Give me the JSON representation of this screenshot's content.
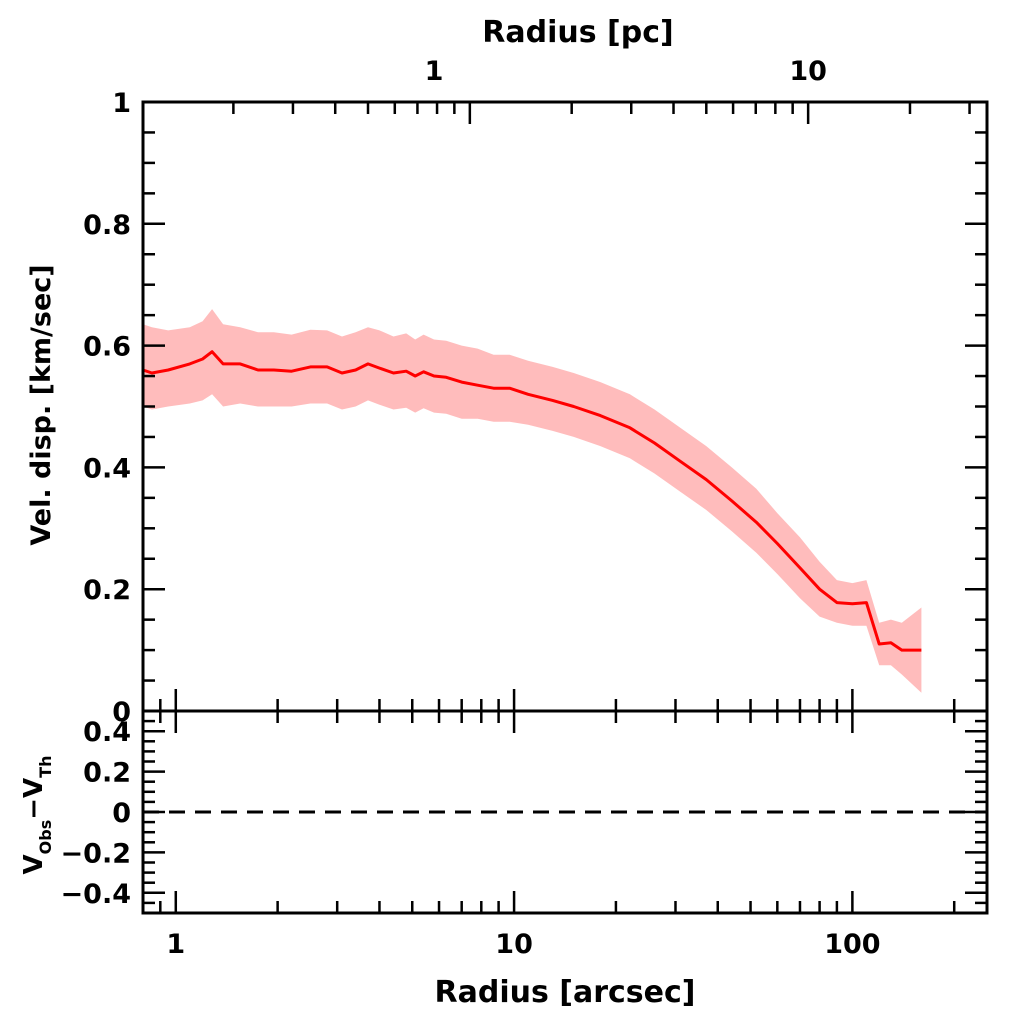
{
  "chart_data": [
    {
      "type": "area",
      "panel": "top",
      "xlabel_top": "Radius [pc]",
      "ylabel": "Vel. disp. [km/sec]",
      "x_scale": "log",
      "xlim": [
        0.8,
        250
      ],
      "ylim": [
        0,
        1
      ],
      "yticks": [
        "0",
        "0.2",
        "0.4",
        "0.6",
        "0.8",
        "1"
      ],
      "pc_ticks": [
        {
          "label": "1",
          "x_arcsec": 5.8
        },
        {
          "label": "10",
          "x_arcsec": 74
        }
      ],
      "colors": {
        "line": "#ff0000",
        "band": "#ffbcbc"
      },
      "series": [
        {
          "x": [
            0.8,
            0.85,
            0.95,
            1.1,
            1.2,
            1.28,
            1.38,
            1.55,
            1.75,
            1.95,
            2.2,
            2.5,
            2.8,
            3.1,
            3.4,
            3.7,
            4.0,
            4.4,
            4.8,
            5.1,
            5.4,
            5.8,
            6.3,
            7.0,
            7.8,
            8.7,
            9.7,
            11,
            13,
            15,
            18,
            22,
            26,
            31,
            37,
            44,
            52,
            60,
            70,
            80,
            90,
            100,
            110,
            120,
            130,
            140,
            160
          ],
          "y": [
            0.56,
            0.555,
            0.56,
            0.57,
            0.578,
            0.59,
            0.57,
            0.57,
            0.56,
            0.56,
            0.558,
            0.565,
            0.565,
            0.555,
            0.56,
            0.57,
            0.563,
            0.555,
            0.558,
            0.55,
            0.557,
            0.55,
            0.548,
            0.54,
            0.535,
            0.53,
            0.53,
            0.52,
            0.51,
            0.5,
            0.485,
            0.465,
            0.44,
            0.41,
            0.38,
            0.345,
            0.31,
            0.275,
            0.235,
            0.2,
            0.178,
            0.176,
            0.178,
            0.11,
            0.112,
            0.1,
            0.1
          ],
          "y_lower": [
            0.5,
            0.495,
            0.5,
            0.505,
            0.51,
            0.52,
            0.5,
            0.505,
            0.5,
            0.5,
            0.5,
            0.505,
            0.505,
            0.495,
            0.5,
            0.51,
            0.503,
            0.495,
            0.498,
            0.49,
            0.497,
            0.49,
            0.488,
            0.48,
            0.48,
            0.475,
            0.475,
            0.47,
            0.46,
            0.45,
            0.435,
            0.415,
            0.39,
            0.36,
            0.33,
            0.295,
            0.26,
            0.225,
            0.185,
            0.155,
            0.145,
            0.14,
            0.14,
            0.075,
            0.075,
            0.06,
            0.03
          ],
          "y_upper": [
            0.635,
            0.63,
            0.625,
            0.63,
            0.64,
            0.66,
            0.635,
            0.63,
            0.622,
            0.622,
            0.618,
            0.626,
            0.625,
            0.615,
            0.622,
            0.63,
            0.625,
            0.615,
            0.62,
            0.61,
            0.618,
            0.61,
            0.608,
            0.6,
            0.595,
            0.585,
            0.585,
            0.575,
            0.565,
            0.555,
            0.54,
            0.52,
            0.495,
            0.465,
            0.435,
            0.4,
            0.365,
            0.325,
            0.285,
            0.245,
            0.215,
            0.21,
            0.215,
            0.145,
            0.15,
            0.145,
            0.17
          ]
        }
      ]
    },
    {
      "type": "line",
      "panel": "bottom",
      "xlabel": "Radius [arcsec]",
      "ylabel": "V_Obs − V_Th",
      "ylabel_main": "V",
      "ylabel_sub1": "Obs",
      "ylabel_minus": "−",
      "ylabel_sub2": "Th",
      "x_scale": "log",
      "xlim": [
        0.8,
        250
      ],
      "ylim": [
        -0.5,
        0.5
      ],
      "xticks": [
        "1",
        "10",
        "100"
      ],
      "yticks": [
        "0.4",
        "0.2",
        "0",
        "−0.2",
        "−0.4"
      ],
      "reference_line": {
        "y": 0,
        "style": "dashed"
      }
    }
  ]
}
